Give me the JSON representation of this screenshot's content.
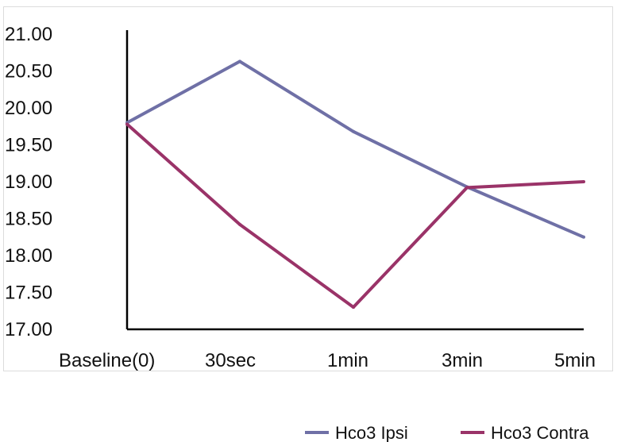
{
  "chart_data": {
    "type": "line",
    "categories": [
      "Baseline(0)",
      "30sec",
      "1min",
      "3min",
      "5min"
    ],
    "series": [
      {
        "name": "Hco3 Ipsi",
        "color": "#6f70a6",
        "values": [
          19.8,
          20.63,
          19.68,
          18.93,
          18.25
        ]
      },
      {
        "name": "Hco3 Contra",
        "color": "#9a3368",
        "values": [
          19.78,
          18.42,
          17.3,
          18.92,
          19.0
        ]
      }
    ],
    "ylim": [
      17.0,
      21.0
    ],
    "yticks": [
      "17.00",
      "17.50",
      "18.00",
      "18.50",
      "19.00",
      "19.50",
      "20.00",
      "20.50",
      "21.00"
    ],
    "ytick_values": [
      17.0,
      17.5,
      18.0,
      18.5,
      19.0,
      19.5,
      20.0,
      20.5,
      21.0
    ],
    "grid": false,
    "legend_position": "bottom-right"
  }
}
